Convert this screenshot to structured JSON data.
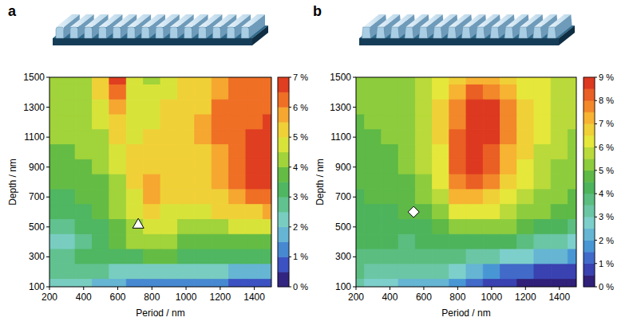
{
  "chart_data": [
    {
      "type": "contour",
      "panel_label": "a",
      "xlabel": "Period / nm",
      "ylabel": "Depth / nm",
      "xlim": [
        200,
        1500
      ],
      "xticks": [
        200,
        400,
        600,
        800,
        1000,
        1200,
        1400
      ],
      "ylim": [
        100,
        1500
      ],
      "yticks": [
        100,
        300,
        500,
        700,
        900,
        1100,
        1300,
        1500
      ],
      "x": [
        200,
        300,
        400,
        500,
        600,
        700,
        800,
        900,
        1000,
        1100,
        1200,
        1300,
        1400,
        1500
      ],
      "y": [
        1500,
        1400,
        1300,
        1200,
        1100,
        1000,
        900,
        800,
        700,
        600,
        500,
        400,
        300,
        200,
        100
      ],
      "cells": [
        [
          4.2,
          4.3,
          4.4,
          5.0,
          6.8,
          4.8,
          4.4,
          4.8,
          5.0,
          5.2,
          5.6,
          6.0,
          6.1,
          6.2
        ],
        [
          4.2,
          4.3,
          4.4,
          5.0,
          6.2,
          4.8,
          4.5,
          4.9,
          5.0,
          5.3,
          5.8,
          6.1,
          6.2,
          6.3
        ],
        [
          4.1,
          4.2,
          4.3,
          4.8,
          5.5,
          4.8,
          4.6,
          5.0,
          5.1,
          5.4,
          6.0,
          6.2,
          6.3,
          6.4
        ],
        [
          4.0,
          4.1,
          4.2,
          4.6,
          5.2,
          4.8,
          4.8,
          5.1,
          5.2,
          5.5,
          6.0,
          6.2,
          6.4,
          6.6
        ],
        [
          4.0,
          4.0,
          4.1,
          4.4,
          5.0,
          4.9,
          5.0,
          5.2,
          5.2,
          5.5,
          6.0,
          6.3,
          6.6,
          6.8
        ],
        [
          3.9,
          3.9,
          4.0,
          4.3,
          4.8,
          5.0,
          5.2,
          5.3,
          5.2,
          5.4,
          5.9,
          6.3,
          6.7,
          6.9
        ],
        [
          3.8,
          3.8,
          3.9,
          4.1,
          4.6,
          5.0,
          5.4,
          5.3,
          5.2,
          5.3,
          5.8,
          6.2,
          6.7,
          6.9
        ],
        [
          3.6,
          3.6,
          3.7,
          3.9,
          4.4,
          5.0,
          5.6,
          5.3,
          5.1,
          5.2,
          5.6,
          6.1,
          6.6,
          6.8
        ],
        [
          3.3,
          3.4,
          3.5,
          3.8,
          4.2,
          4.8,
          5.5,
          5.1,
          5.0,
          5.0,
          5.3,
          5.8,
          6.1,
          6.2
        ],
        [
          3.0,
          3.0,
          3.3,
          3.6,
          4.0,
          4.6,
          5.0,
          4.8,
          4.7,
          4.8,
          5.0,
          5.2,
          5.4,
          5.5
        ],
        [
          2.6,
          2.6,
          3.0,
          3.4,
          3.9,
          4.3,
          4.6,
          4.5,
          4.2,
          4.3,
          4.4,
          4.5,
          4.6,
          4.6
        ],
        [
          2.4,
          2.4,
          2.9,
          3.4,
          3.8,
          4.0,
          4.1,
          4.0,
          3.8,
          3.8,
          3.8,
          3.8,
          3.8,
          3.8
        ],
        [
          2.6,
          2.6,
          3.0,
          3.3,
          3.4,
          3.4,
          3.5,
          3.5,
          3.3,
          3.2,
          3.1,
          3.0,
          3.0,
          3.0
        ],
        [
          2.8,
          2.7,
          2.7,
          2.6,
          2.4,
          2.3,
          2.2,
          2.3,
          2.2,
          2.1,
          2.0,
          1.9,
          1.8,
          1.8
        ],
        [
          2.4,
          2.2,
          2.0,
          1.7,
          1.5,
          1.4,
          1.3,
          1.3,
          1.2,
          1.1,
          1.0,
          0.9,
          0.7,
          0.6
        ]
      ],
      "levels": [
        0,
        0.5,
        1,
        1.5,
        2,
        2.5,
        3,
        3.5,
        4,
        4.5,
        5,
        5.5,
        6,
        6.5,
        7
      ],
      "colorbar_range": [
        0,
        7
      ],
      "colorbar_ticks": [
        {
          "value": 0,
          "label": "0 %"
        },
        {
          "value": 1,
          "label": "1 %"
        },
        {
          "value": 2,
          "label": "2 %"
        },
        {
          "value": 3,
          "label": "3 %"
        },
        {
          "value": 4,
          "label": "4 %"
        },
        {
          "value": 5,
          "label": "5 %"
        },
        {
          "value": 6,
          "label": "6 %"
        },
        {
          "value": 7,
          "label": "7 %"
        }
      ],
      "markers": [
        {
          "x": 720,
          "y": 520,
          "marker": "triangle"
        }
      ]
    },
    {
      "type": "contour",
      "panel_label": "b",
      "xlabel": "Period / nm",
      "ylabel": "Depth / nm",
      "xlim": [
        200,
        1500
      ],
      "xticks": [
        200,
        400,
        600,
        800,
        1000,
        1200,
        1400
      ],
      "ylim": [
        100,
        1500
      ],
      "yticks": [
        100,
        300,
        500,
        700,
        900,
        1100,
        1300,
        1500
      ],
      "x": [
        200,
        300,
        400,
        500,
        600,
        700,
        800,
        900,
        1000,
        1100,
        1200,
        1300,
        1400,
        1500
      ],
      "y": [
        1500,
        1400,
        1300,
        1200,
        1100,
        1000,
        900,
        800,
        700,
        600,
        500,
        400,
        300,
        200,
        100
      ],
      "cells": [
        [
          5.0,
          5.0,
          5.2,
          5.4,
          5.8,
          6.2,
          6.8,
          7.0,
          7.0,
          6.6,
          6.2,
          6.0,
          5.8,
          5.6
        ],
        [
          5.0,
          5.0,
          5.2,
          5.4,
          5.9,
          6.4,
          7.2,
          8.0,
          7.8,
          7.0,
          6.4,
          6.0,
          5.8,
          5.6
        ],
        [
          5.0,
          5.0,
          5.2,
          5.4,
          5.9,
          6.6,
          7.6,
          8.5,
          8.6,
          7.5,
          6.6,
          6.1,
          5.8,
          5.6
        ],
        [
          4.9,
          5.0,
          5.1,
          5.3,
          5.8,
          6.6,
          7.8,
          8.6,
          8.6,
          7.6,
          6.6,
          6.1,
          5.8,
          5.5
        ],
        [
          4.8,
          4.9,
          5.0,
          5.2,
          5.7,
          6.5,
          8.0,
          8.7,
          8.5,
          7.6,
          6.6,
          6.0,
          5.7,
          5.4
        ],
        [
          4.7,
          4.8,
          4.9,
          5.1,
          5.6,
          6.4,
          8.2,
          8.6,
          8.3,
          7.4,
          6.5,
          5.9,
          5.6,
          5.3
        ],
        [
          4.6,
          4.7,
          4.8,
          5.0,
          5.5,
          6.3,
          8.2,
          8.5,
          8.0,
          7.2,
          6.4,
          5.8,
          5.4,
          5.2
        ],
        [
          4.5,
          4.6,
          4.7,
          4.9,
          5.3,
          6.1,
          7.8,
          8.0,
          7.5,
          6.9,
          6.1,
          5.6,
          5.2,
          5.0
        ],
        [
          4.4,
          4.5,
          4.6,
          4.7,
          5.1,
          5.8,
          7.0,
          7.0,
          6.8,
          6.4,
          5.8,
          5.3,
          5.0,
          4.8
        ],
        [
          4.3,
          4.4,
          4.4,
          4.5,
          4.8,
          5.4,
          6.0,
          6.2,
          6.1,
          5.8,
          5.3,
          5.0,
          4.7,
          4.5
        ],
        [
          4.2,
          4.2,
          4.2,
          4.2,
          4.4,
          4.8,
          5.2,
          5.4,
          5.3,
          5.0,
          4.7,
          4.4,
          4.1,
          3.9
        ],
        [
          4.0,
          4.0,
          4.0,
          3.9,
          4.0,
          4.2,
          4.4,
          4.4,
          4.3,
          4.0,
          3.7,
          3.4,
          3.1,
          2.9
        ],
        [
          3.8,
          3.7,
          3.6,
          3.5,
          3.6,
          3.7,
          3.6,
          3.4,
          3.2,
          2.8,
          2.5,
          2.2,
          2.0,
          1.8
        ],
        [
          3.6,
          3.4,
          3.3,
          3.1,
          3.1,
          3.0,
          2.6,
          2.2,
          1.8,
          1.4,
          1.1,
          0.9,
          0.8,
          0.7
        ],
        [
          3.0,
          2.8,
          2.6,
          2.4,
          2.4,
          2.2,
          1.8,
          1.2,
          0.8,
          0.5,
          0.4,
          0.3,
          0.3,
          0.3
        ]
      ],
      "levels": [
        0,
        0.5,
        1,
        1.5,
        2,
        2.5,
        3,
        3.5,
        4,
        4.5,
        5,
        5.5,
        6,
        6.5,
        7,
        7.5,
        8,
        8.5,
        9
      ],
      "colorbar_range": [
        0,
        9
      ],
      "colorbar_ticks": [
        {
          "value": 0,
          "label": "0 %"
        },
        {
          "value": 1,
          "label": "1 %"
        },
        {
          "value": 2,
          "label": "2 %"
        },
        {
          "value": 3,
          "label": "3 %"
        },
        {
          "value": 4,
          "label": "4 %"
        },
        {
          "value": 5,
          "label": "5 %"
        },
        {
          "value": 6,
          "label": "6 %"
        },
        {
          "value": 7,
          "label": "7 %"
        },
        {
          "value": 8,
          "label": "8 %"
        },
        {
          "value": 9,
          "label": "9 %"
        }
      ],
      "markers": [
        {
          "x": 540,
          "y": 600,
          "marker": "diamond"
        }
      ]
    }
  ]
}
